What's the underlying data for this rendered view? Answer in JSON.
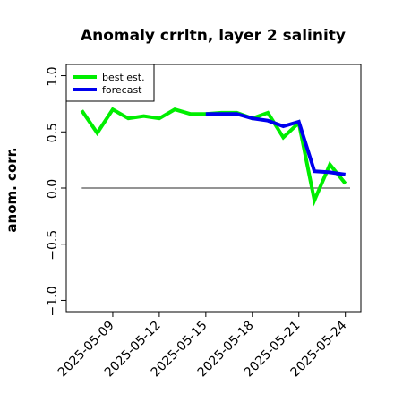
{
  "chart_data": {
    "type": "line",
    "title": "Anomaly crrltn, layer 2 salinity",
    "xlabel": "",
    "ylabel": "anom. corr.",
    "ylim": [
      -1.1,
      1.1
    ],
    "yticks": [
      -1.0,
      -0.5,
      0.0,
      0.5,
      1.0
    ],
    "ytick_labels": [
      "−1.0",
      "−0.5",
      "0.0",
      "0.5",
      "1.0"
    ],
    "x_start": "2025-05-06",
    "x_end": "2025-05-25",
    "xticks": [
      "2025-05-09",
      "2025-05-12",
      "2025-05-15",
      "2025-05-18",
      "2025-05-21",
      "2025-05-24"
    ],
    "xtick_colors": [
      "#000000",
      "#000000",
      "#228b22",
      "#000000",
      "#000000",
      "#000000"
    ],
    "zero_line": 0.0,
    "grid": false,
    "legend_position": "top-left",
    "series": [
      {
        "name": "best est.",
        "color": "#00ee00",
        "x": [
          "2025-05-07",
          "2025-05-08",
          "2025-05-09",
          "2025-05-10",
          "2025-05-11",
          "2025-05-12",
          "2025-05-13",
          "2025-05-14",
          "2025-05-15",
          "2025-05-16",
          "2025-05-17",
          "2025-05-18",
          "2025-05-19",
          "2025-05-20",
          "2025-05-21",
          "2025-05-22",
          "2025-05-23",
          "2025-05-24"
        ],
        "values": [
          0.69,
          0.49,
          0.7,
          0.62,
          0.64,
          0.62,
          0.7,
          0.66,
          0.66,
          0.67,
          0.67,
          0.62,
          0.67,
          0.45,
          0.58,
          -0.11,
          0.21,
          0.04
        ]
      },
      {
        "name": "forecast",
        "color": "#0000ee",
        "x": [
          "2025-05-15",
          "2025-05-16",
          "2025-05-17",
          "2025-05-18",
          "2025-05-19",
          "2025-05-20",
          "2025-05-21",
          "2025-05-22",
          "2025-05-23",
          "2025-05-24"
        ],
        "values": [
          0.66,
          0.66,
          0.66,
          0.62,
          0.6,
          0.55,
          0.59,
          0.15,
          0.14,
          0.12
        ]
      }
    ]
  }
}
